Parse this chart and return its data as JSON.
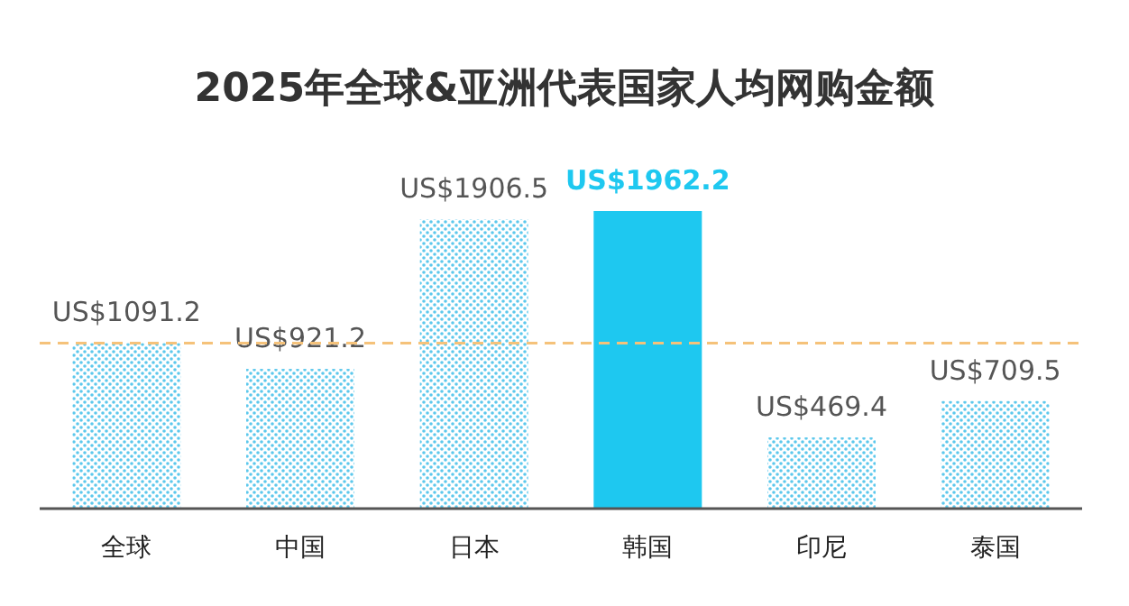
{
  "chart_data": {
    "type": "bar",
    "title": "2025年全球&亚洲代表国家人均网购金额",
    "categories": [
      "全球",
      "中国",
      "日本",
      "韩国",
      "印尼",
      "泰国"
    ],
    "values": [
      1091.2,
      921.2,
      1906.5,
      1962.2,
      469.4,
      709.5
    ],
    "value_labels": [
      "US$1091.2",
      "US$921.2",
      "US$1906.5",
      "US$1962.2",
      "US$469.4",
      "US$709.5"
    ],
    "colors": [
      "#5cc8ec",
      "#5cc8ec",
      "#5cc8ec",
      "#1ec8f0",
      "#5cc8ec",
      "#5cc8ec"
    ],
    "ref_lines": [
      {
        "axis": "y",
        "value": 1091.2,
        "color": "#f5c27a",
        "line_style": "dashed"
      }
    ]
  }
}
